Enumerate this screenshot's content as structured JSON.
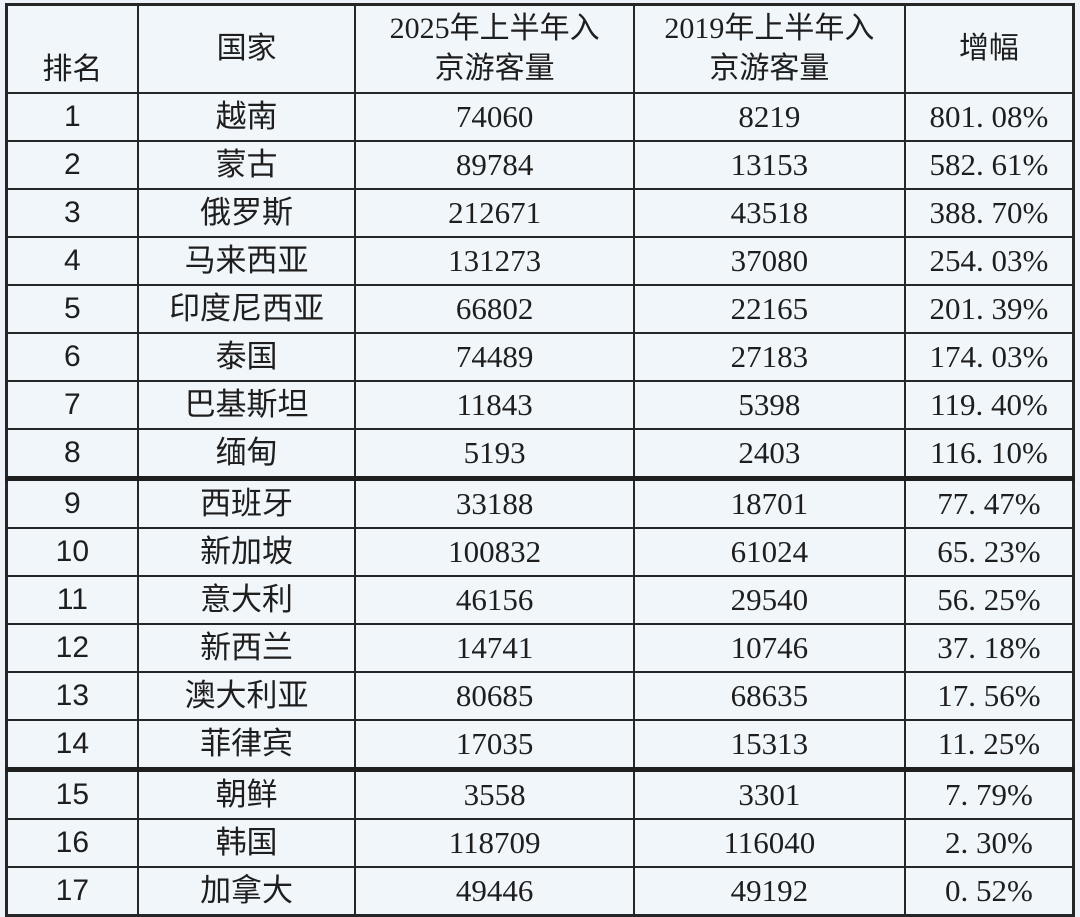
{
  "colors": {
    "background": "#edf3f8",
    "table_background": "#f1f6fa",
    "border": "#262626",
    "text": "#1e1e1e"
  },
  "chart_data": {
    "type": "table",
    "columns": [
      {
        "label": "排名",
        "display": "排名"
      },
      {
        "label": "国家",
        "display": "国家"
      },
      {
        "label": "2025年上半年入京游客量",
        "display": "2025年上半年入\n京游客量"
      },
      {
        "label": "2019年上半年入京游客量",
        "display": "2019年上半年入\n京游客量"
      },
      {
        "label": "增幅",
        "display": "增幅"
      }
    ],
    "rows": [
      {
        "rank": "1",
        "country": "越南",
        "v2025": "74060",
        "v2019": "8219",
        "growth": "801. 08%"
      },
      {
        "rank": "2",
        "country": "蒙古",
        "v2025": "89784",
        "v2019": "13153",
        "growth": "582. 61%"
      },
      {
        "rank": "3",
        "country": "俄罗斯",
        "v2025": "212671",
        "v2019": "43518",
        "growth": "388. 70%"
      },
      {
        "rank": "4",
        "country": "马来西亚",
        "v2025": "131273",
        "v2019": "37080",
        "growth": "254. 03%"
      },
      {
        "rank": "5",
        "country": "印度尼西亚",
        "v2025": "66802",
        "v2019": "22165",
        "growth": "201. 39%"
      },
      {
        "rank": "6",
        "country": "泰国",
        "v2025": "74489",
        "v2019": "27183",
        "growth": "174. 03%"
      },
      {
        "rank": "7",
        "country": "巴基斯坦",
        "v2025": "11843",
        "v2019": "5398",
        "growth": "119. 40%"
      },
      {
        "rank": "8",
        "country": "缅甸",
        "v2025": "5193",
        "v2019": "2403",
        "growth": "116. 10%"
      },
      {
        "rank": "9",
        "country": "西班牙",
        "v2025": "33188",
        "v2019": "18701",
        "growth": "77. 47%"
      },
      {
        "rank": "10",
        "country": "新加坡",
        "v2025": "100832",
        "v2019": "61024",
        "growth": "65. 23%"
      },
      {
        "rank": "11",
        "country": "意大利",
        "v2025": "46156",
        "v2019": "29540",
        "growth": "56. 25%"
      },
      {
        "rank": "12",
        "country": "新西兰",
        "v2025": "14741",
        "v2019": "10746",
        "growth": "37. 18%"
      },
      {
        "rank": "13",
        "country": "澳大利亚",
        "v2025": "80685",
        "v2019": "68635",
        "growth": "17. 56%"
      },
      {
        "rank": "14",
        "country": "菲律宾",
        "v2025": "17035",
        "v2019": "15313",
        "growth": "11. 25%"
      },
      {
        "rank": "15",
        "country": "朝鲜",
        "v2025": "3558",
        "v2019": "3301",
        "growth": "7. 79%"
      },
      {
        "rank": "16",
        "country": "韩国",
        "v2025": "118709",
        "v2019": "116040",
        "growth": "2. 30%"
      },
      {
        "rank": "17",
        "country": "加拿大",
        "v2025": "49446",
        "v2019": "49192",
        "growth": "0. 52%"
      }
    ],
    "group_separator_after_ranks": [
      8,
      14
    ],
    "layout": {
      "column_width_percents": [
        12.3,
        20.4,
        26.1,
        25.4,
        15.8
      ],
      "grid": "on",
      "header_rows": 1
    }
  }
}
